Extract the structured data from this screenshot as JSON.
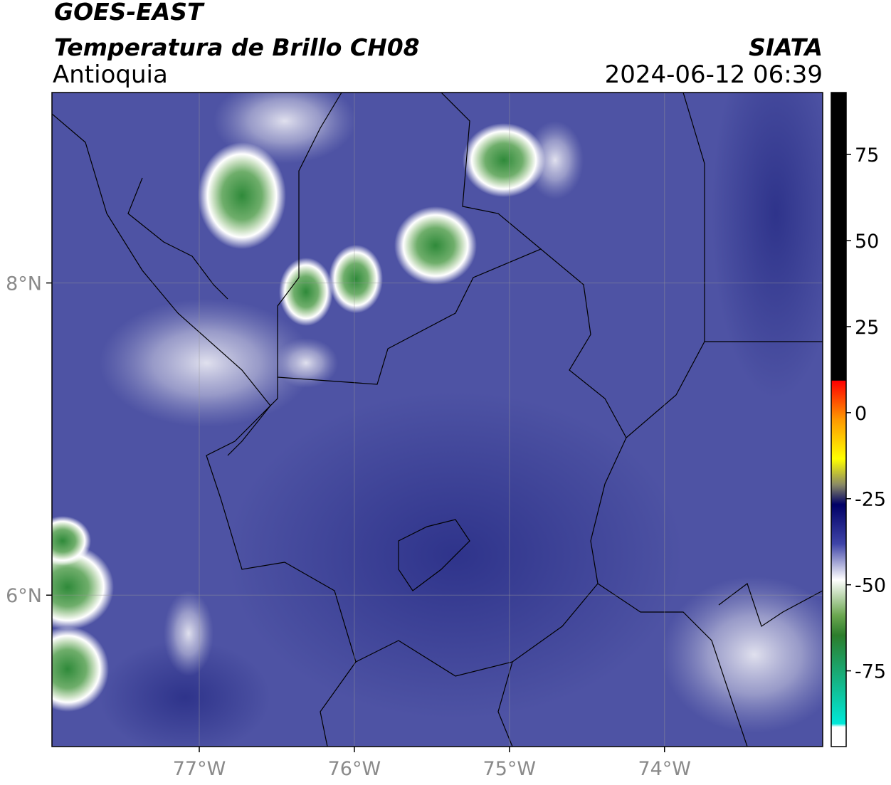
{
  "header": {
    "title": "GOES-EAST",
    "subtitle": "Temperatura de Brillo CH08",
    "region": "Antioquia",
    "source": "SIATA",
    "datetime": "2024-06-12 06:39"
  },
  "map": {
    "xlim": [
      -77.95,
      -72.98
    ],
    "ylim": [
      5.03,
      9.22
    ],
    "xticks": [
      {
        "value": -77,
        "label": "77°W"
      },
      {
        "value": -76,
        "label": "76°W"
      },
      {
        "value": -75,
        "label": "75°W"
      },
      {
        "value": -74,
        "label": "74°W"
      }
    ],
    "yticks": [
      {
        "value": 8,
        "label": "8°N"
      },
      {
        "value": 6,
        "label": "6°N"
      }
    ]
  },
  "colorbar": {
    "lim": [
      -97,
      93
    ],
    "ticks": [
      75,
      50,
      25,
      0,
      -25,
      -50,
      -75
    ]
  }
}
